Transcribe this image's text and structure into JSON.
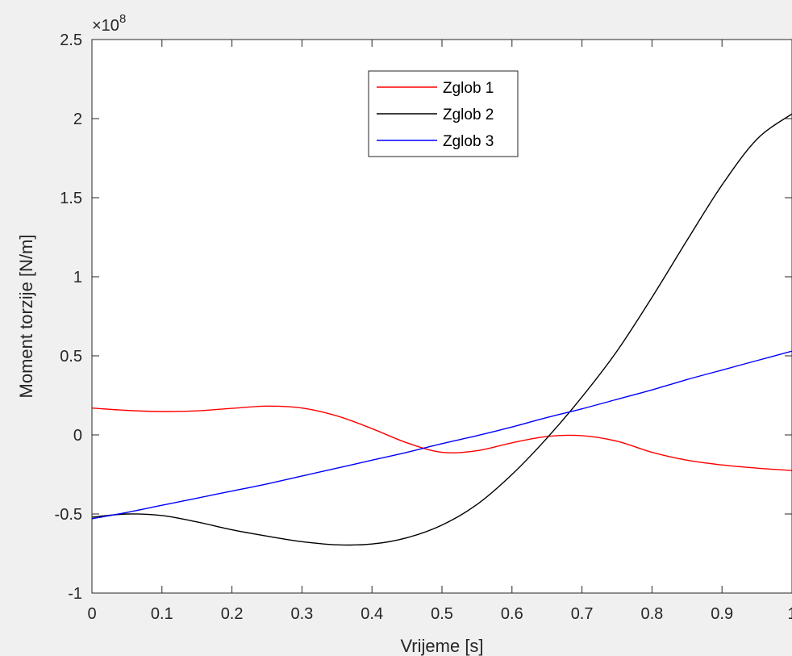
{
  "chart_data": {
    "type": "line",
    "title": "",
    "xlabel": "Vrijeme [s]",
    "ylabel": "Moment torzije [N/m]",
    "y_exponent_label": "×10",
    "y_exponent_power": "8",
    "xlim": [
      0,
      1
    ],
    "ylim": [
      -1,
      2.5
    ],
    "x_ticks": [
      0,
      0.1,
      0.2,
      0.3,
      0.4,
      0.5,
      0.6,
      0.7,
      0.8,
      0.9,
      1
    ],
    "x_tick_labels": [
      "0",
      "0.1",
      "0.2",
      "0.3",
      "0.4",
      "0.5",
      "0.6",
      "0.7",
      "0.8",
      "0.9",
      "1"
    ],
    "y_ticks": [
      -1,
      -0.5,
      0,
      0.5,
      1,
      1.5,
      2,
      2.5
    ],
    "y_tick_labels": [
      "-1",
      "-0.5",
      "0",
      "0.5",
      "1",
      "1.5",
      "2",
      "2.5"
    ],
    "grid": false,
    "legend_position": "top-center",
    "x": [
      0,
      0.05,
      0.1,
      0.15,
      0.2,
      0.25,
      0.3,
      0.35,
      0.4,
      0.45,
      0.5,
      0.55,
      0.6,
      0.65,
      0.7,
      0.75,
      0.8,
      0.85,
      0.9,
      0.95,
      1
    ],
    "series": [
      {
        "name": "Zglob 1",
        "color": "#ff0000",
        "values": [
          0.17,
          0.155,
          0.148,
          0.152,
          0.168,
          0.182,
          0.17,
          0.12,
          0.04,
          -0.05,
          -0.11,
          -0.1,
          -0.05,
          -0.01,
          -0.005,
          -0.04,
          -0.11,
          -0.16,
          -0.19,
          -0.21,
          -0.225
        ]
      },
      {
        "name": "Zglob 2",
        "color": "#000000",
        "values": [
          -0.52,
          -0.5,
          -0.51,
          -0.55,
          -0.6,
          -0.64,
          -0.675,
          -0.695,
          -0.69,
          -0.65,
          -0.57,
          -0.44,
          -0.25,
          -0.02,
          0.24,
          0.53,
          0.87,
          1.23,
          1.58,
          1.87,
          2.03
        ]
      },
      {
        "name": "Zglob 3",
        "color": "#0000ff",
        "values": [
          -0.53,
          -0.49,
          -0.445,
          -0.4,
          -0.355,
          -0.31,
          -0.26,
          -0.21,
          -0.16,
          -0.11,
          -0.055,
          -0.005,
          0.05,
          0.11,
          0.165,
          0.225,
          0.285,
          0.35,
          0.41,
          0.47,
          0.53
        ]
      }
    ]
  }
}
